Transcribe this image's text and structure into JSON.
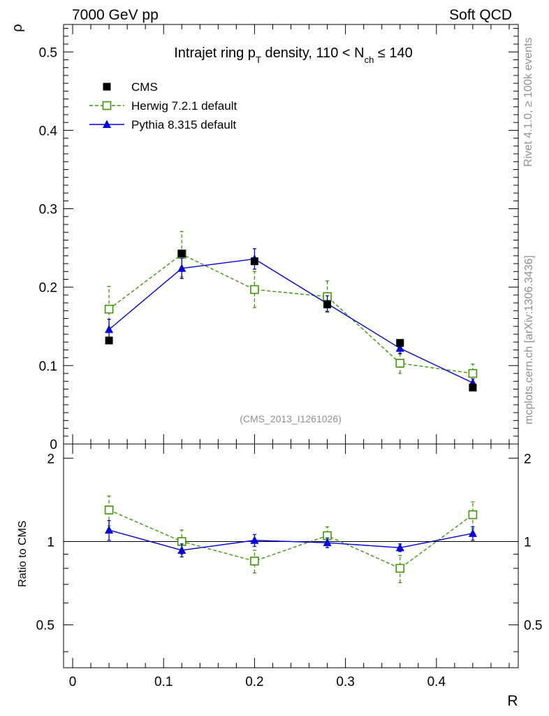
{
  "header": {
    "left": "7000 GeV pp",
    "right": "Soft QCD"
  },
  "side_labels": {
    "rivet": "Rivet 4.1.0, ≥ 100k events",
    "mcplots": "mcplots.cern.ch [arXiv:1306.3436]"
  },
  "chart_data": {
    "type": "line",
    "title_parts": {
      "prefix": "Intrajet ring p",
      "pt_sub": "T",
      "middle": " density, 110 < N",
      "nch_sub": "ch",
      "suffix": " ≤ 140"
    },
    "xlabel": "R",
    "ylabel": "ρ",
    "ratio_ylabel": "Ratio to CMS",
    "watermark": "(CMS_2013_I1261026)",
    "xlim": [
      -0.01,
      0.49
    ],
    "ylim": [
      0,
      0.535
    ],
    "ratio_ylim": [
      0.35,
      2.25
    ],
    "x_ticks": [
      0,
      0.1,
      0.2,
      0.3,
      0.4
    ],
    "x_tick_labels": [
      "0",
      "0.1",
      "0.2",
      "0.3",
      "0.4"
    ],
    "y_ticks": [
      0,
      0.1,
      0.2,
      0.3,
      0.4,
      0.5
    ],
    "y_tick_labels": [
      "0",
      "0.1",
      "0.2",
      "0.3",
      "0.4",
      "0.5"
    ],
    "ratio_ticks": [
      0.5,
      1,
      2
    ],
    "ratio_tick_labels": [
      "0.5",
      "1",
      "2"
    ],
    "x": [
      0.04,
      0.12,
      0.2,
      0.28,
      0.36,
      0.44
    ],
    "series": [
      {
        "name": "CMS",
        "color": "#000000",
        "marker": "square-filled",
        "values": [
          0.132,
          0.243,
          0.233,
          0.178,
          0.129,
          0.072
        ],
        "ratio": [
          1,
          1,
          1,
          1,
          1,
          1
        ]
      },
      {
        "name": "Herwig 7.2.1 default",
        "color": "#3a9a00",
        "marker": "square-open",
        "dashed": true,
        "values": [
          0.172,
          0.242,
          0.197,
          0.188,
          0.103,
          0.09
        ],
        "errors": [
          0.029,
          0.029,
          0.023,
          0.02,
          0.013,
          0.012
        ],
        "ratio": [
          1.3,
          1.0,
          0.85,
          1.05,
          0.8,
          1.25
        ],
        "ratio_errors": [
          0.16,
          0.1,
          0.08,
          0.08,
          0.09,
          0.14
        ]
      },
      {
        "name": "Pythia 8.315 default",
        "color": "#0000e0",
        "marker": "triangle-filled",
        "dashed": false,
        "values": [
          0.146,
          0.224,
          0.236,
          0.179,
          0.122,
          0.078
        ],
        "errors": [
          0.013,
          0.013,
          0.013,
          0.01,
          0.007,
          0.005
        ],
        "ratio": [
          1.1,
          0.93,
          1.01,
          0.99,
          0.95,
          1.07
        ],
        "ratio_errors": [
          0.09,
          0.05,
          0.05,
          0.04,
          0.03,
          0.06
        ]
      }
    ]
  }
}
